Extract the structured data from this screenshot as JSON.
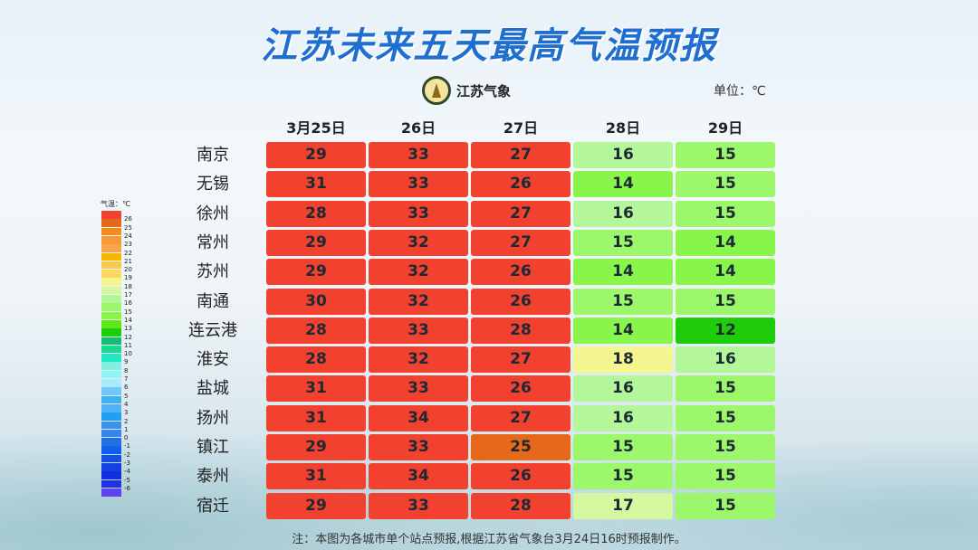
{
  "title": "江苏未来五天最高气温预报",
  "logo_text": "江苏气象",
  "unit_label": "单位：℃",
  "columns": [
    "3月25日",
    "26日",
    "27日",
    "28日",
    "29日"
  ],
  "rows": [
    {
      "city": "南京",
      "values": [
        29,
        33,
        27,
        16,
        15
      ]
    },
    {
      "city": "无锡",
      "values": [
        31,
        33,
        26,
        14,
        15
      ]
    },
    {
      "city": "徐州",
      "values": [
        28,
        33,
        27,
        16,
        15
      ]
    },
    {
      "city": "常州",
      "values": [
        29,
        32,
        27,
        15,
        14
      ]
    },
    {
      "city": "苏州",
      "values": [
        29,
        32,
        26,
        14,
        14
      ]
    },
    {
      "city": "南通",
      "values": [
        30,
        32,
        26,
        15,
        15
      ]
    },
    {
      "city": "连云港",
      "values": [
        28,
        33,
        28,
        14,
        12
      ]
    },
    {
      "city": "淮安",
      "values": [
        28,
        32,
        27,
        18,
        16
      ]
    },
    {
      "city": "盐城",
      "values": [
        31,
        33,
        26,
        16,
        15
      ]
    },
    {
      "city": "扬州",
      "values": [
        31,
        34,
        27,
        16,
        15
      ]
    },
    {
      "city": "镇江",
      "values": [
        29,
        33,
        25,
        15,
        15
      ]
    },
    {
      "city": "泰州",
      "values": [
        31,
        34,
        26,
        15,
        15
      ]
    },
    {
      "city": "宿迁",
      "values": [
        29,
        33,
        28,
        17,
        15
      ]
    }
  ],
  "legend": {
    "title": "气温：℃",
    "labels": [
      "26",
      "25",
      "24",
      "23",
      "22",
      "21",
      "20",
      "19",
      "18",
      "17",
      "16",
      "15",
      "14",
      "13",
      "12",
      "11",
      "10",
      "9",
      "8",
      "7",
      "6",
      "5",
      "4",
      "3",
      "2",
      "1",
      "0",
      "-1",
      "-2",
      "-3",
      "-4",
      "-5",
      "-6"
    ],
    "colors": [
      "#f2412f",
      "#e8681a",
      "#f58a1f",
      "#f79a35",
      "#f7a64a",
      "#f7b500",
      "#fbc84a",
      "#fbd860",
      "#f5f590",
      "#d6f7a0",
      "#b3f79a",
      "#9cf76b",
      "#88f54a",
      "#5ee81a",
      "#1fcc0a",
      "#10c070",
      "#1ed890",
      "#20e8c0",
      "#80f0e0",
      "#90f4f8",
      "#a8ecfc",
      "#70c8f8",
      "#40b0f0",
      "#50b0f8",
      "#20a0f0",
      "#4090f0",
      "#3088f0",
      "#2070e0",
      "#1060f0",
      "#1050e8",
      "#1840e0",
      "#1030e0",
      "#2030e8",
      "#6040f0"
    ]
  },
  "note": "注：本图为各城市单个站点预报,根据江苏省气象台3月24日16时预报制作。"
}
